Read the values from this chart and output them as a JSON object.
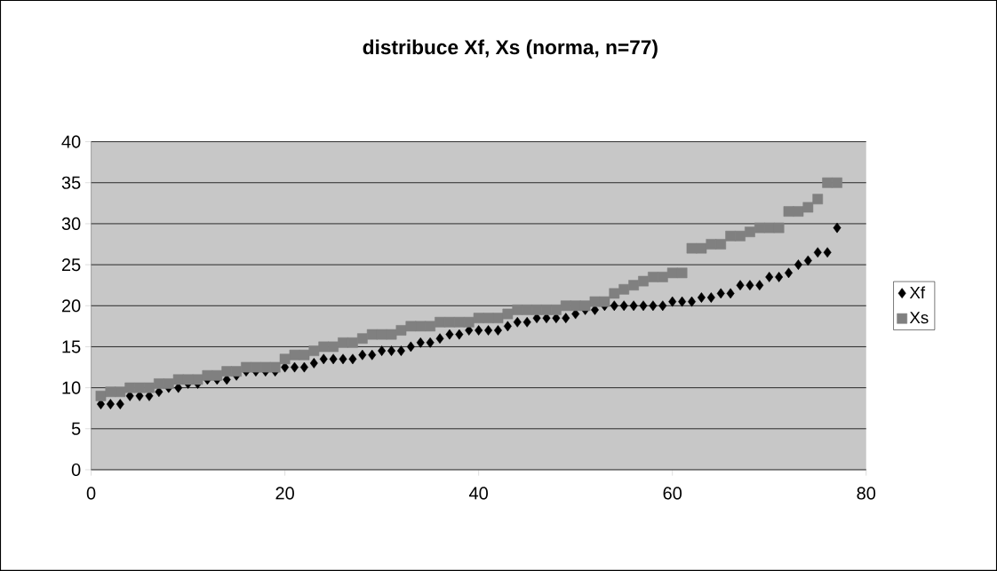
{
  "chart_data": {
    "type": "scatter",
    "title": "distribuce Xf, Xs (norma, n=77)",
    "x": [
      1,
      2,
      3,
      4,
      5,
      6,
      7,
      8,
      9,
      10,
      11,
      12,
      13,
      14,
      15,
      16,
      17,
      18,
      19,
      20,
      21,
      22,
      23,
      24,
      25,
      26,
      27,
      28,
      29,
      30,
      31,
      32,
      33,
      34,
      35,
      36,
      37,
      38,
      39,
      40,
      41,
      42,
      43,
      44,
      45,
      46,
      47,
      48,
      49,
      50,
      51,
      52,
      53,
      54,
      55,
      56,
      57,
      58,
      59,
      60,
      61,
      62,
      63,
      64,
      65,
      66,
      67,
      68,
      69,
      70,
      71,
      72,
      73,
      74,
      75,
      76,
      77
    ],
    "series": [
      {
        "name": "Xf",
        "color": "#000000",
        "marker": "diamond",
        "values": [
          8,
          8,
          8,
          9,
          9,
          9,
          9.5,
          10,
          10,
          10.5,
          10.5,
          11,
          11,
          11,
          11.5,
          12,
          12,
          12,
          12,
          12.5,
          12.5,
          12.5,
          13,
          13.5,
          13.5,
          13.5,
          13.5,
          14,
          14,
          14.5,
          14.5,
          14.5,
          15,
          15.5,
          15.5,
          16,
          16.5,
          16.5,
          17,
          17,
          17,
          17,
          17.5,
          18,
          18,
          18.5,
          18.5,
          18.5,
          18.5,
          19,
          19.5,
          19.5,
          20,
          20,
          20,
          20,
          20,
          20,
          20,
          20.5,
          20.5,
          20.5,
          21,
          21,
          21.5,
          21.5,
          22.5,
          22.5,
          22.5,
          23.5,
          23.5,
          24,
          25,
          25.5,
          26.5,
          26.5,
          29.5
        ]
      },
      {
        "name": "Xs",
        "color": "#808080",
        "marker": "square",
        "values": [
          9,
          9.5,
          9.5,
          10,
          10,
          10,
          10.5,
          10.5,
          11,
          11,
          11,
          11.5,
          11.5,
          12,
          12,
          12.5,
          12.5,
          12.5,
          12.5,
          13.5,
          14,
          14,
          14.5,
          15,
          15,
          15.5,
          15.5,
          16,
          16.5,
          16.5,
          16.5,
          17,
          17.5,
          17.5,
          17.5,
          18,
          18,
          18,
          18,
          18.5,
          18.5,
          18.5,
          19,
          19.5,
          19.5,
          19.5,
          19.5,
          19.5,
          20,
          20,
          20,
          20.5,
          20.5,
          21.5,
          22,
          22.5,
          23,
          23.5,
          23.5,
          24,
          24,
          27,
          27,
          27.5,
          27.5,
          28.5,
          28.5,
          29,
          29.5,
          29.5,
          29.5,
          31.5,
          31.5,
          32,
          33,
          35,
          35
        ]
      }
    ],
    "xlim": [
      0,
      80
    ],
    "xticks": [
      0,
      20,
      40,
      60,
      80
    ],
    "ylim": [
      0,
      40
    ],
    "yticks": [
      0,
      5,
      10,
      15,
      20,
      25,
      30,
      35,
      40
    ],
    "grid": "y",
    "legend": "right"
  }
}
